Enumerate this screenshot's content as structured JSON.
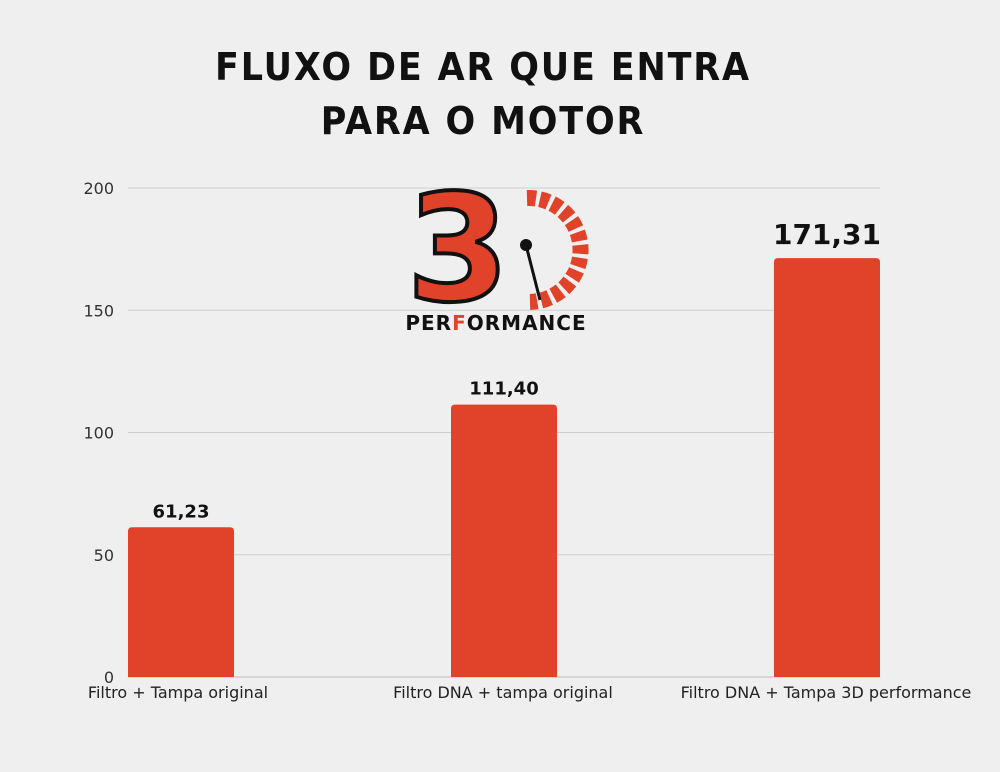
{
  "chart_data": {
    "type": "bar",
    "title": "FLUXO DE AR QUE ENTRA PARA O MOTOR",
    "categories": [
      "Filtro + Tampa original",
      "Filtro DNA + tampa original",
      "Filtro DNA + Tampa 3D performance"
    ],
    "values": [
      61.23,
      111.4,
      171.31
    ],
    "value_labels": [
      "61,23",
      "111,40",
      "171,31"
    ],
    "ylim": [
      0,
      200
    ],
    "yticks": [
      0,
      50,
      100,
      150,
      200
    ],
    "grid": true,
    "bar_color": "#e0422a"
  },
  "logo": {
    "mark": "3",
    "text_left": "PER",
    "text_accent": "F",
    "text_right": "ORMANCE",
    "accent_color": "#e0422a",
    "icon": "speedometer-gauge-icon"
  }
}
